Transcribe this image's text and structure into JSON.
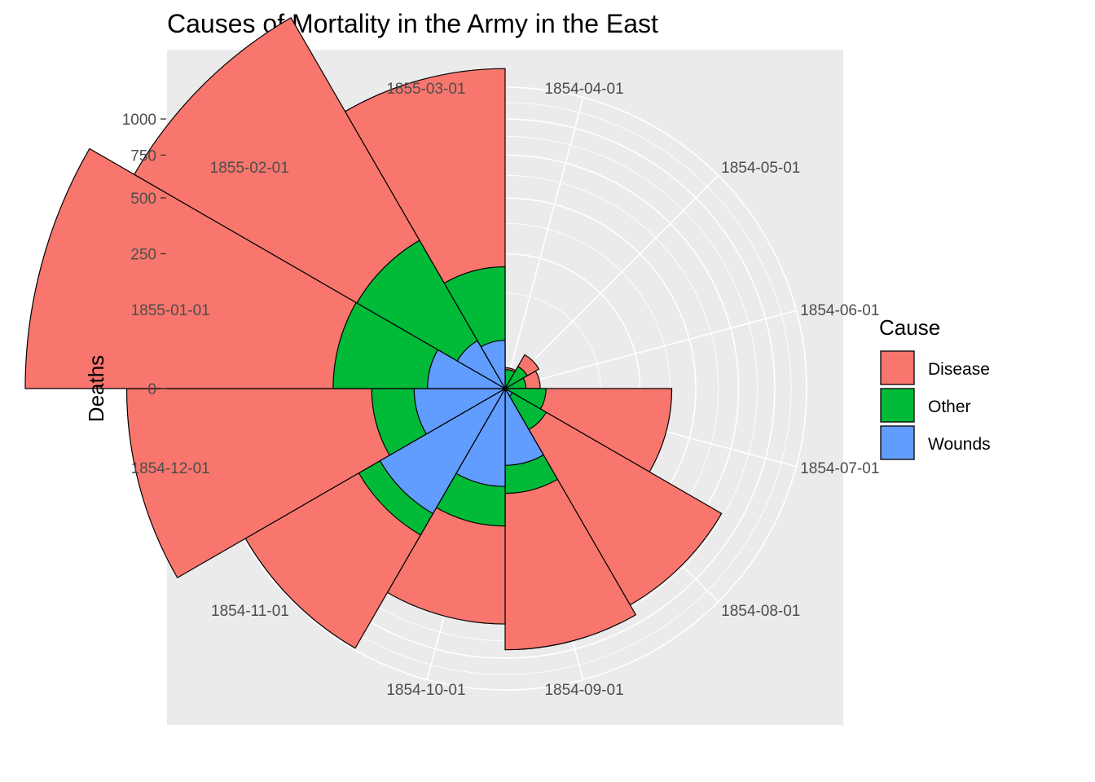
{
  "chart_data": {
    "type": "polar-stacked-bar",
    "title": "Causes of Mortality in the Army in the East",
    "ylabel": "Deaths",
    "y_scale": "sqrt",
    "y_ticks": [
      0,
      250,
      500,
      750,
      1000
    ],
    "y_tick_labels": [
      "0",
      "250",
      "500",
      "750",
      "1000"
    ],
    "y_max": 1250,
    "categories": [
      "1854-04-01",
      "1854-05-01",
      "1854-06-01",
      "1854-07-01",
      "1854-08-01",
      "1854-09-01",
      "1854-10-01",
      "1854-11-01",
      "1854-12-01",
      "1855-01-01",
      "1855-02-01",
      "1855-03-01"
    ],
    "series": [
      {
        "name": "Disease",
        "color": "#F8766D",
        "values": [
          1,
          12,
          11,
          359,
          828,
          788,
          503,
          844,
          1725,
          2761,
          2120,
          1205
        ]
      },
      {
        "name": "Other",
        "color": "#00BA38",
        "values": [
          5,
          9,
          6,
          23,
          30,
          70,
          128,
          106,
          131,
          324,
          361,
          172
        ]
      },
      {
        "name": "Wounds",
        "color": "#619CFF",
        "values": [
          0,
          0,
          0,
          0,
          1,
          81,
          132,
          287,
          114,
          83,
          42,
          32
        ]
      }
    ],
    "legend": {
      "title": "Cause",
      "position": "right"
    },
    "grid": true,
    "panel_background": "#EBEBEB",
    "grid_color": "#FFFFFF"
  }
}
